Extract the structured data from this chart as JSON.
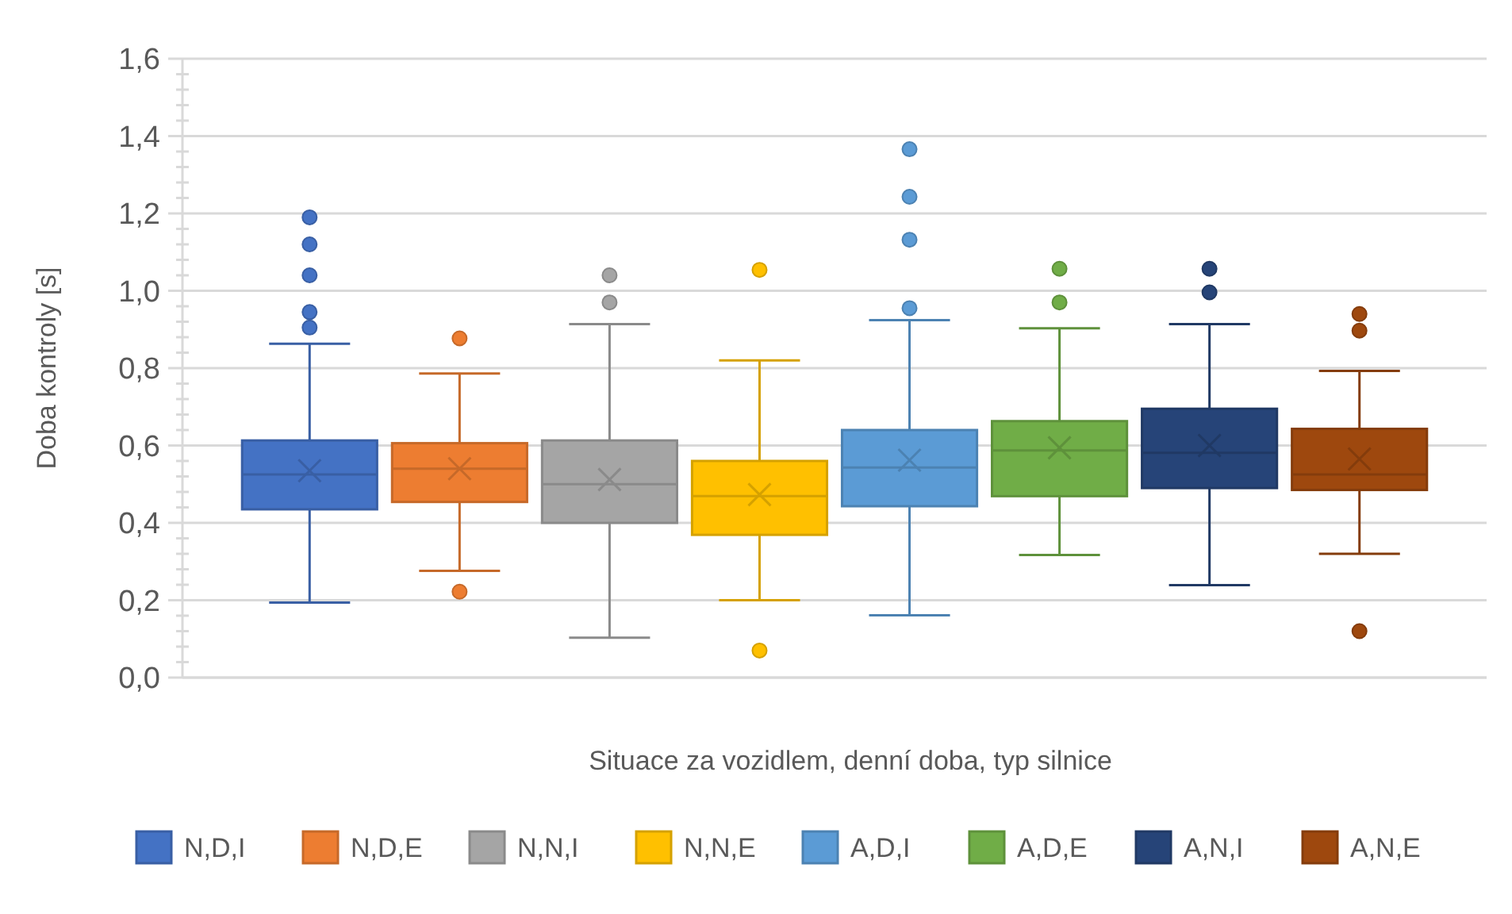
{
  "chart_data": {
    "type": "box",
    "xlabel": "Situace za vozidlem, denní doba, typ silnice",
    "ylabel": "Doba kontroly [s]",
    "categories": [
      null
    ],
    "ylim": [
      0,
      1.6
    ],
    "yticks": [
      {
        "value": 0,
        "label": "0,0"
      },
      {
        "value": 0.04,
        "label": null
      },
      {
        "value": 0.08,
        "label": null
      },
      {
        "value": 0.12,
        "label": null
      },
      {
        "value": 0.16,
        "label": null
      },
      {
        "value": 0.2,
        "label": "0,2"
      },
      {
        "value": 0.24,
        "label": null
      },
      {
        "value": 0.28,
        "label": null
      },
      {
        "value": 0.32,
        "label": null
      },
      {
        "value": 0.36,
        "label": null
      },
      {
        "value": 0.4,
        "label": "0,4"
      },
      {
        "value": 0.44,
        "label": null
      },
      {
        "value": 0.48,
        "label": null
      },
      {
        "value": 0.52,
        "label": null
      },
      {
        "value": 0.56,
        "label": null
      },
      {
        "value": 0.6,
        "label": "0,6"
      },
      {
        "value": 0.64,
        "label": null
      },
      {
        "value": 0.68,
        "label": null
      },
      {
        "value": 0.72,
        "label": null
      },
      {
        "value": 0.76,
        "label": null
      },
      {
        "value": 0.8,
        "label": "0,8"
      },
      {
        "value": 0.84,
        "label": null
      },
      {
        "value": 0.88,
        "label": null
      },
      {
        "value": 0.92,
        "label": null
      },
      {
        "value": 0.96,
        "label": null
      },
      {
        "value": 1.0,
        "label": "1,0"
      },
      {
        "value": 1.04,
        "label": null
      },
      {
        "value": 1.08,
        "label": null
      },
      {
        "value": 1.12,
        "label": null
      },
      {
        "value": 1.16,
        "label": null
      },
      {
        "value": 1.2,
        "label": "1,2"
      },
      {
        "value": 1.24,
        "label": null
      },
      {
        "value": 1.28,
        "label": null
      },
      {
        "value": 1.32,
        "label": null
      },
      {
        "value": 1.36,
        "label": null
      },
      {
        "value": 1.4,
        "label": "1,4"
      },
      {
        "value": 1.44,
        "label": null
      },
      {
        "value": 1.48,
        "label": null
      },
      {
        "value": 1.52,
        "label": null
      },
      {
        "value": 1.56,
        "label": null
      },
      {
        "value": 1.6,
        "label": "1,6"
      }
    ],
    "grid": "y",
    "legend": "bottom",
    "marker": "circle",
    "tick_labels": "y",
    "series": [
      {
        "name": "N,D,I",
        "color": "#4472c4",
        "boxes": [
          {
            "low": 0.194,
            "q1": 0.435,
            "median": 0.525,
            "q3": 0.613,
            "high": 0.863,
            "mean": 0.535,
            "outliers": [
              1.19,
              1.12,
              1.04,
              0.945,
              0.905
            ]
          }
        ]
      },
      {
        "name": "N,D,E",
        "color": "#ed7d31",
        "boxes": [
          {
            "low": 0.276,
            "q1": 0.454,
            "median": 0.54,
            "q3": 0.606,
            "high": 0.786,
            "mean": 0.54,
            "outliers": [
              0.877,
              0.222
            ]
          }
        ]
      },
      {
        "name": "N,N,I",
        "color": "#a5a5a5",
        "boxes": [
          {
            "low": 0.103,
            "q1": 0.4,
            "median": 0.5,
            "q3": 0.613,
            "high": 0.914,
            "mean": 0.512,
            "outliers": [
              1.04,
              0.97
            ]
          }
        ]
      },
      {
        "name": "N,N,E",
        "color": "#ffc000",
        "boxes": [
          {
            "low": 0.2,
            "q1": 0.369,
            "median": 0.469,
            "q3": 0.56,
            "high": 0.82,
            "mean": 0.473,
            "outliers": [
              1.054,
              0.07
            ]
          }
        ]
      },
      {
        "name": "A,D,I",
        "color": "#5b9bd5",
        "boxes": [
          {
            "low": 0.161,
            "q1": 0.443,
            "median": 0.543,
            "q3": 0.64,
            "high": 0.924,
            "mean": 0.562,
            "outliers": [
              1.366,
              1.243,
              1.132,
              0.955
            ]
          }
        ]
      },
      {
        "name": "A,D,E",
        "color": "#70ad47",
        "boxes": [
          {
            "low": 0.317,
            "q1": 0.469,
            "median": 0.587,
            "q3": 0.663,
            "high": 0.903,
            "mean": 0.594,
            "outliers": [
              1.057,
              0.97
            ]
          }
        ]
      },
      {
        "name": "A,N,I",
        "color": "#264478",
        "boxes": [
          {
            "low": 0.239,
            "q1": 0.49,
            "median": 0.581,
            "q3": 0.695,
            "high": 0.914,
            "mean": 0.6,
            "outliers": [
              1.057,
              0.996
            ]
          }
        ]
      },
      {
        "name": "A,N,E",
        "color": "#9e480e",
        "boxes": [
          {
            "low": 0.32,
            "q1": 0.485,
            "median": 0.525,
            "q3": 0.643,
            "high": 0.793,
            "mean": 0.565,
            "outliers": [
              0.94,
              0.897,
              0.12
            ]
          }
        ]
      }
    ]
  }
}
